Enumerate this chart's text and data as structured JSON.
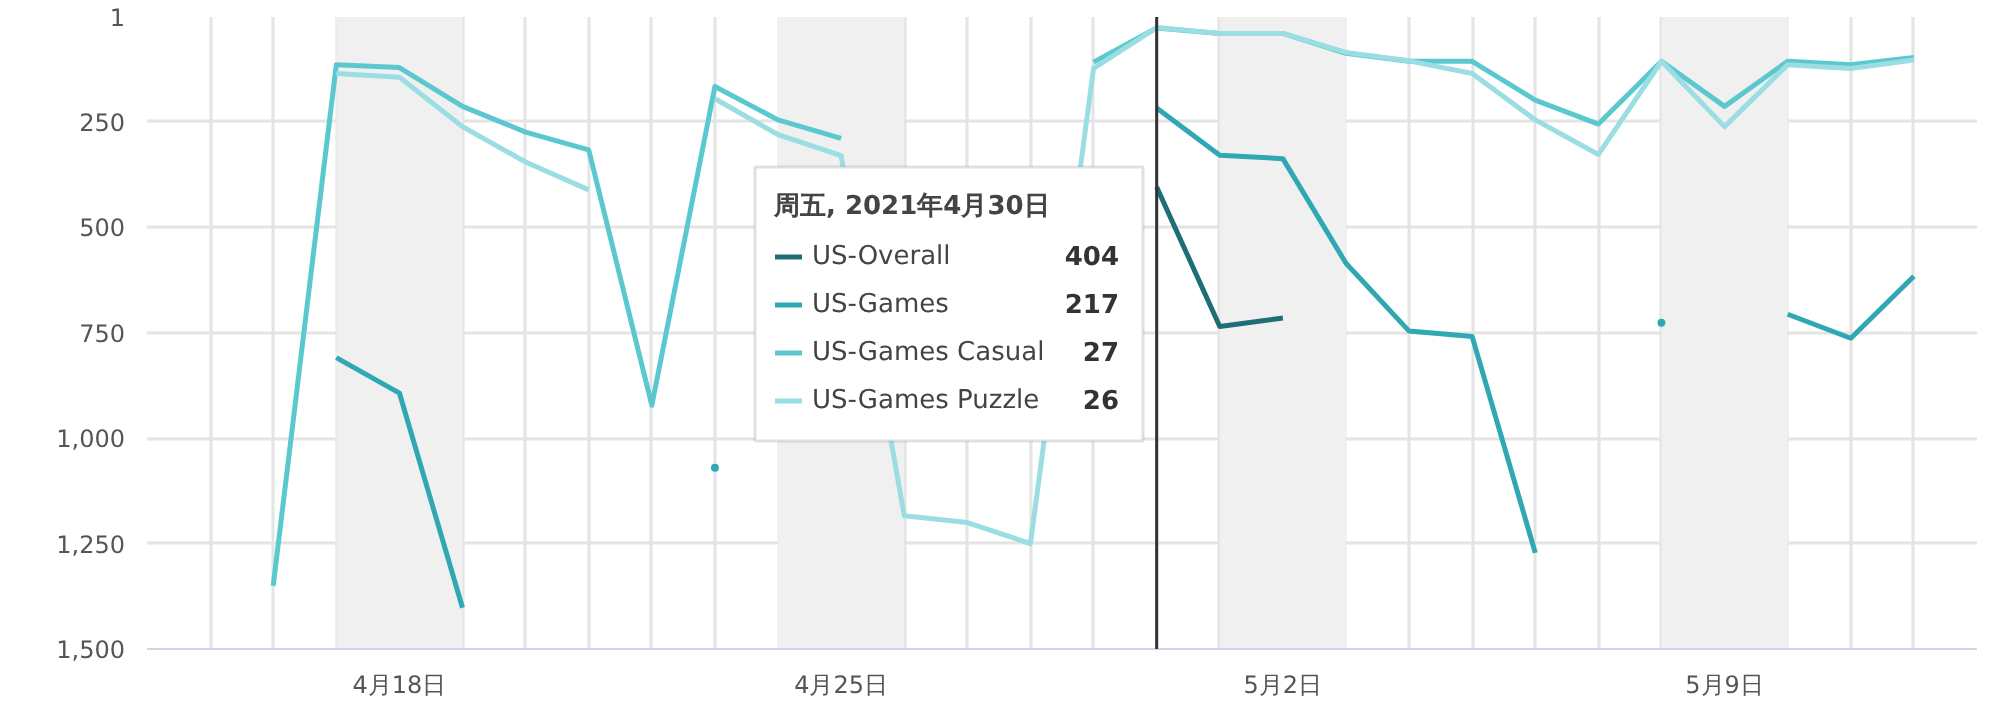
{
  "chart_data": {
    "type": "line",
    "x": [
      "2021-04-16",
      "2021-04-17",
      "2021-04-18",
      "2021-04-19",
      "2021-04-20",
      "2021-04-21",
      "2021-04-22",
      "2021-04-23",
      "2021-04-24",
      "2021-04-25",
      "2021-04-26",
      "2021-04-27",
      "2021-04-28",
      "2021-04-29",
      "2021-04-30",
      "2021-05-01",
      "2021-05-02",
      "2021-05-03",
      "2021-05-04",
      "2021-05-05",
      "2021-05-06",
      "2021-05-07",
      "2021-05-08",
      "2021-05-09",
      "2021-05-10",
      "2021-05-11",
      "2021-05-12"
    ],
    "series": [
      {
        "name": "US-Overall",
        "color": "#1e6e78",
        "values": [
          null,
          null,
          null,
          null,
          null,
          null,
          null,
          null,
          null,
          null,
          null,
          null,
          null,
          null,
          404,
          735,
          715,
          null,
          null,
          null,
          null,
          null,
          null,
          null,
          null,
          null,
          null
        ]
      },
      {
        "name": "US-Games",
        "color": "#2fa8b4",
        "values": [
          null,
          809,
          893,
          1402,
          null,
          null,
          null,
          1070,
          null,
          null,
          null,
          null,
          null,
          null,
          217,
          329,
          337,
          585,
          746,
          759,
          1272,
          null,
          726,
          null,
          706,
          763,
          616
        ]
      },
      {
        "name": "US-Games Casual",
        "color": "#5bc8d0",
        "values": [
          1350,
          114,
          121,
          213,
          274,
          316,
          922,
          166,
          245,
          289,
          null,
          null,
          null,
          108,
          27,
          40,
          40,
          87,
          106,
          106,
          198,
          255,
          106,
          213,
          106,
          114,
          97
        ]
      },
      {
        "name": "US-Games Puzzle",
        "color": "#9adde2",
        "values": [
          null,
          135,
          144,
          261,
          345,
          411,
          null,
          195,
          280,
          330,
          1184,
          1200,
          1250,
          123,
          26,
          40,
          40,
          85,
          105,
          135,
          245,
          327,
          106,
          261,
          114,
          123,
          103
        ]
      }
    ],
    "xlim": [
      "2021-04-14",
      "2021-05-13"
    ],
    "xticks": [
      {
        "value": "2021-04-15",
        "label": null
      },
      {
        "value": "2021-04-16",
        "label": null
      },
      {
        "value": "2021-04-17",
        "label": null
      },
      {
        "value": "2021-04-18",
        "label": "4月18日"
      },
      {
        "value": "2021-04-19",
        "label": null
      },
      {
        "value": "2021-04-20",
        "label": null
      },
      {
        "value": "2021-04-21",
        "label": null
      },
      {
        "value": "2021-04-22",
        "label": null
      },
      {
        "value": "2021-04-23",
        "label": null
      },
      {
        "value": "2021-04-24",
        "label": null
      },
      {
        "value": "2021-04-25",
        "label": "4月25日"
      },
      {
        "value": "2021-04-26",
        "label": null
      },
      {
        "value": "2021-04-27",
        "label": null
      },
      {
        "value": "2021-04-28",
        "label": null
      },
      {
        "value": "2021-04-29",
        "label": null
      },
      {
        "value": "2021-04-30",
        "label": null
      },
      {
        "value": "2021-05-01",
        "label": null
      },
      {
        "value": "2021-05-02",
        "label": "5月2日"
      },
      {
        "value": "2021-05-03",
        "label": null
      },
      {
        "value": "2021-05-04",
        "label": null
      },
      {
        "value": "2021-05-05",
        "label": null
      },
      {
        "value": "2021-05-06",
        "label": null
      },
      {
        "value": "2021-05-07",
        "label": null
      },
      {
        "value": "2021-05-08",
        "label": null
      },
      {
        "value": "2021-05-09",
        "label": "5月9日"
      },
      {
        "value": "2021-05-10",
        "label": null
      },
      {
        "value": "2021-05-11",
        "label": null
      },
      {
        "value": "2021-05-12",
        "label": null
      }
    ],
    "ylim": [
      1500,
      1
    ],
    "yticks": [
      1,
      250,
      500,
      750,
      {
        "value": 1000,
        "label": "1,000"
      },
      {
        "value": 1250,
        "label": "1,250"
      },
      {
        "value": 1500,
        "label": "1,500"
      }
    ],
    "bands": [
      {
        "axis": "x",
        "from": "2021-04-17",
        "to": "2021-04-19",
        "color": "#f0f0f0"
      },
      {
        "axis": "x",
        "from": "2021-04-24",
        "to": "2021-04-26",
        "color": "#f0f0f0"
      },
      {
        "axis": "x",
        "from": "2021-05-01",
        "to": "2021-05-03",
        "color": "#f0f0f0"
      },
      {
        "axis": "x",
        "from": "2021-05-08",
        "to": "2021-05-10",
        "color": "#f0f0f0"
      }
    ],
    "ref_lines": [
      {
        "axis": "x",
        "value": "2021-04-30",
        "color": "#333333"
      }
    ],
    "legend_title": "周五, 2021年4月30日",
    "annotations": [
      "404",
      "217",
      "27",
      "26"
    ],
    "legend": "top",
    "grid": true,
    "marker": "none",
    "line_style": "solid"
  }
}
